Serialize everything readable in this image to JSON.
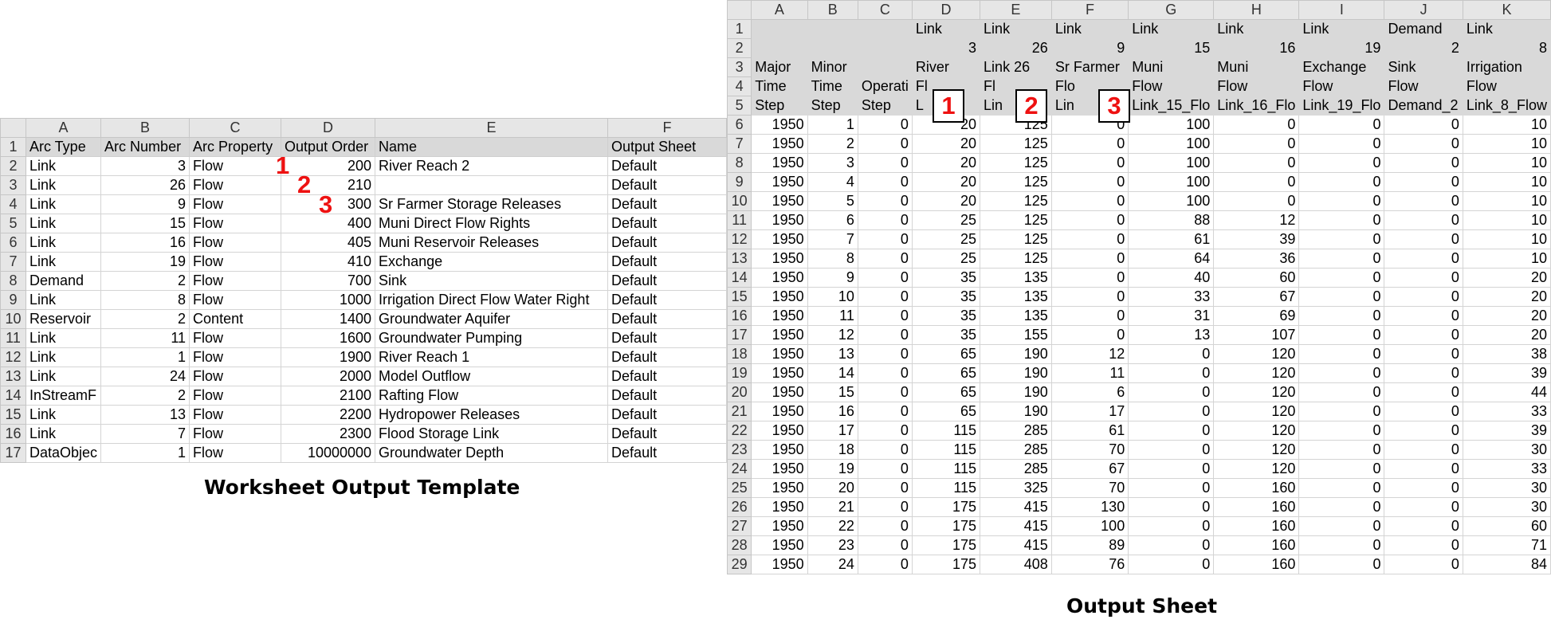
{
  "left": {
    "caption": "Worksheet Output Template",
    "col_letters": [
      "A",
      "B",
      "C",
      "D",
      "E",
      "F"
    ],
    "rows": [
      [
        "1",
        "Arc Type",
        "Arc Number",
        "Arc Property",
        "Output Order",
        "Name",
        "Output Sheet"
      ],
      [
        "2",
        "Link",
        "3",
        "Flow",
        "200",
        "River Reach 2",
        "Default"
      ],
      [
        "3",
        "Link",
        "26",
        "Flow",
        "210",
        "",
        "Default"
      ],
      [
        "4",
        "Link",
        "9",
        "Flow",
        "300",
        "Sr Farmer Storage Releases",
        "Default"
      ],
      [
        "5",
        "Link",
        "15",
        "Flow",
        "400",
        "Muni Direct Flow Rights",
        "Default"
      ],
      [
        "6",
        "Link",
        "16",
        "Flow",
        "405",
        "Muni Reservoir Releases",
        "Default"
      ],
      [
        "7",
        "Link",
        "19",
        "Flow",
        "410",
        "Exchange",
        "Default"
      ],
      [
        "8",
        "Demand",
        "2",
        "Flow",
        "700",
        "Sink",
        "Default"
      ],
      [
        "9",
        "Link",
        "8",
        "Flow",
        "1000",
        "Irrigation Direct Flow Water Right",
        "Default"
      ],
      [
        "10",
        "Reservoir",
        "2",
        "Content",
        "1400",
        "Groundwater Aquifer",
        "Default"
      ],
      [
        "11",
        "Link",
        "11",
        "Flow",
        "1600",
        "Groundwater Pumping",
        "Default"
      ],
      [
        "12",
        "Link",
        "1",
        "Flow",
        "1900",
        "River Reach 1",
        "Default"
      ],
      [
        "13",
        "Link",
        "24",
        "Flow",
        "2000",
        "Model Outflow",
        "Default"
      ],
      [
        "14",
        "InStreamF",
        "2",
        "Flow",
        "2100",
        "Rafting Flow",
        "Default"
      ],
      [
        "15",
        "Link",
        "13",
        "Flow",
        "2200",
        "Hydropower Releases",
        "Default"
      ],
      [
        "16",
        "Link",
        "7",
        "Flow",
        "2300",
        "Flood Storage Link",
        "Default"
      ],
      [
        "17",
        "DataObjec",
        "1",
        "Flow",
        "10000000",
        "Groundwater Depth",
        "Default"
      ]
    ],
    "markers": [
      "1",
      "2",
      "3"
    ]
  },
  "right": {
    "caption": "Output Sheet",
    "col_letters": [
      "A",
      "B",
      "C",
      "D",
      "E",
      "F",
      "G",
      "H",
      "I",
      "J",
      "K"
    ],
    "header_rows": [
      [
        "1",
        "",
        "",
        "",
        "Link",
        "Link",
        "Link",
        "Link",
        "Link",
        "Link",
        "Demand",
        "Link"
      ],
      [
        "2",
        "",
        "",
        "",
        "3",
        "26",
        "9",
        "15",
        "16",
        "19",
        "2",
        "8"
      ],
      [
        "3",
        "Major",
        "Minor",
        "",
        "River",
        "Link 26",
        "Sr Farmer",
        "Muni",
        "Muni",
        "Exchange",
        "Sink",
        "Irrigation"
      ],
      [
        "4",
        "Time",
        "Time",
        "Operati",
        "Fl",
        "Fl",
        "Flo",
        "Flow",
        "Flow",
        "Flow",
        "Flow",
        "Flow"
      ],
      [
        "5",
        "Step",
        "Step",
        "Step",
        "L",
        "Lin",
        "Lin",
        "Link_15_Flo",
        "Link_16_Flo",
        "Link_19_Flo",
        "Demand_2",
        "Link_8_Flow"
      ]
    ],
    "data_rows": [
      [
        "6",
        "1950",
        "1",
        "0",
        "20",
        "125",
        "0",
        "100",
        "0",
        "0",
        "0",
        "10"
      ],
      [
        "7",
        "1950",
        "2",
        "0",
        "20",
        "125",
        "0",
        "100",
        "0",
        "0",
        "0",
        "10"
      ],
      [
        "8",
        "1950",
        "3",
        "0",
        "20",
        "125",
        "0",
        "100",
        "0",
        "0",
        "0",
        "10"
      ],
      [
        "9",
        "1950",
        "4",
        "0",
        "20",
        "125",
        "0",
        "100",
        "0",
        "0",
        "0",
        "10"
      ],
      [
        "10",
        "1950",
        "5",
        "0",
        "20",
        "125",
        "0",
        "100",
        "0",
        "0",
        "0",
        "10"
      ],
      [
        "11",
        "1950",
        "6",
        "0",
        "25",
        "125",
        "0",
        "88",
        "12",
        "0",
        "0",
        "10"
      ],
      [
        "12",
        "1950",
        "7",
        "0",
        "25",
        "125",
        "0",
        "61",
        "39",
        "0",
        "0",
        "10"
      ],
      [
        "13",
        "1950",
        "8",
        "0",
        "25",
        "125",
        "0",
        "64",
        "36",
        "0",
        "0",
        "10"
      ],
      [
        "14",
        "1950",
        "9",
        "0",
        "35",
        "135",
        "0",
        "40",
        "60",
        "0",
        "0",
        "20"
      ],
      [
        "15",
        "1950",
        "10",
        "0",
        "35",
        "135",
        "0",
        "33",
        "67",
        "0",
        "0",
        "20"
      ],
      [
        "16",
        "1950",
        "11",
        "0",
        "35",
        "135",
        "0",
        "31",
        "69",
        "0",
        "0",
        "20"
      ],
      [
        "17",
        "1950",
        "12",
        "0",
        "35",
        "155",
        "0",
        "13",
        "107",
        "0",
        "0",
        "20"
      ],
      [
        "18",
        "1950",
        "13",
        "0",
        "65",
        "190",
        "12",
        "0",
        "120",
        "0",
        "0",
        "38"
      ],
      [
        "19",
        "1950",
        "14",
        "0",
        "65",
        "190",
        "11",
        "0",
        "120",
        "0",
        "0",
        "39"
      ],
      [
        "20",
        "1950",
        "15",
        "0",
        "65",
        "190",
        "6",
        "0",
        "120",
        "0",
        "0",
        "44"
      ],
      [
        "21",
        "1950",
        "16",
        "0",
        "65",
        "190",
        "17",
        "0",
        "120",
        "0",
        "0",
        "33"
      ],
      [
        "22",
        "1950",
        "17",
        "0",
        "115",
        "285",
        "61",
        "0",
        "120",
        "0",
        "0",
        "39"
      ],
      [
        "23",
        "1950",
        "18",
        "0",
        "115",
        "285",
        "70",
        "0",
        "120",
        "0",
        "0",
        "30"
      ],
      [
        "24",
        "1950",
        "19",
        "0",
        "115",
        "285",
        "67",
        "0",
        "120",
        "0",
        "0",
        "33"
      ],
      [
        "25",
        "1950",
        "20",
        "0",
        "115",
        "325",
        "70",
        "0",
        "160",
        "0",
        "0",
        "30"
      ],
      [
        "26",
        "1950",
        "21",
        "0",
        "175",
        "415",
        "130",
        "0",
        "160",
        "0",
        "0",
        "30"
      ],
      [
        "27",
        "1950",
        "22",
        "0",
        "175",
        "415",
        "100",
        "0",
        "160",
        "0",
        "0",
        "60"
      ],
      [
        "28",
        "1950",
        "23",
        "0",
        "175",
        "415",
        "89",
        "0",
        "160",
        "0",
        "0",
        "71"
      ],
      [
        "29",
        "1950",
        "24",
        "0",
        "175",
        "408",
        "76",
        "0",
        "160",
        "0",
        "0",
        "84"
      ]
    ],
    "markers": [
      "1",
      "2",
      "3"
    ]
  }
}
